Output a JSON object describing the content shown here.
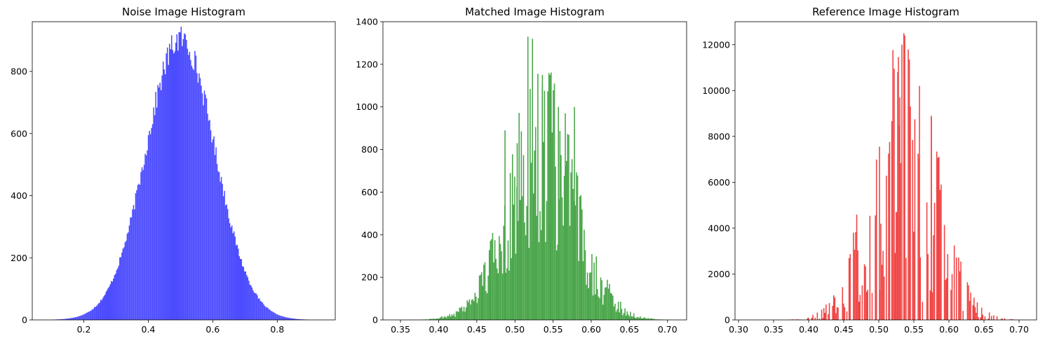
{
  "chart_data": [
    {
      "type": "bar",
      "title": "Noise Image Histogram",
      "color": "#4b4bff",
      "xlim": [
        0.04,
        0.98
      ],
      "ylim": [
        0,
        960
      ],
      "xticks": [
        0.2,
        0.4,
        0.6,
        0.8
      ],
      "yticks": [
        0,
        200,
        400,
        600,
        800
      ],
      "distribution": {
        "mean": 0.5,
        "sd": 0.107,
        "peak": 905,
        "range": [
          0.1,
          0.94
        ],
        "bins": 256,
        "jitter": 0.05
      }
    },
    {
      "type": "bar",
      "title": "Matched Image Histogram",
      "color": "#4aa64a",
      "xlim": [
        0.327,
        0.725
      ],
      "ylim": [
        0,
        1400
      ],
      "xticks": [
        0.35,
        0.4,
        0.45,
        0.5,
        0.55,
        0.6,
        0.65,
        0.7
      ],
      "yticks": [
        0,
        200,
        400,
        600,
        800,
        1000,
        1200,
        1400
      ],
      "distribution": {
        "mean": 0.535,
        "sd": 0.045,
        "peak": 780,
        "range": [
          0.34,
          0.71
        ],
        "bins": 256,
        "jitter": 0.55,
        "spikes": [
          [
            0.517,
            1330
          ],
          [
            0.523,
            1320
          ],
          [
            0.536,
            1150
          ],
          [
            0.546,
            1150
          ],
          [
            0.557,
            1000
          ],
          [
            0.566,
            970
          ],
          [
            0.578,
            1000
          ],
          [
            0.487,
            890
          ],
          [
            0.503,
            830
          ]
        ]
      }
    },
    {
      "type": "bar",
      "title": "Reference Image Histogram",
      "color": "#f04444",
      "xlim": [
        0.295,
        0.725
      ],
      "ylim": [
        0,
        13000
      ],
      "xticks": [
        0.3,
        0.35,
        0.4,
        0.45,
        0.5,
        0.55,
        0.6,
        0.65,
        0.7
      ],
      "yticks": [
        0,
        2000,
        4000,
        6000,
        8000,
        10000,
        12000
      ],
      "distribution": {
        "mean": 0.535,
        "sd": 0.045,
        "peak": 7200,
        "range": [
          0.31,
          0.71
        ],
        "bins": 256,
        "jitter": 0.9,
        "sparse": 0.45,
        "spikes": [
          [
            0.537,
            12400
          ],
          [
            0.533,
            12000
          ],
          [
            0.522,
            10950
          ],
          [
            0.527,
            10800
          ],
          [
            0.558,
            10200
          ],
          [
            0.53,
            9700
          ],
          [
            0.545,
            9300
          ],
          [
            0.575,
            8800
          ],
          [
            0.501,
            7550
          ],
          [
            0.514,
            7250
          ]
        ]
      }
    }
  ]
}
